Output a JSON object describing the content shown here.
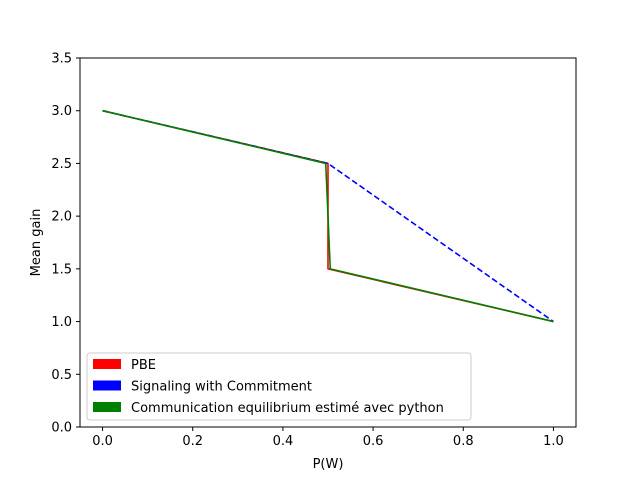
{
  "chart_data": {
    "type": "line",
    "title": "",
    "xlabel": "P(W)",
    "ylabel": "Mean gain",
    "xlim": [
      -0.05,
      1.05
    ],
    "ylim": [
      0.0,
      3.5
    ],
    "xticks": [
      0.0,
      0.2,
      0.4,
      0.6,
      0.8,
      1.0
    ],
    "xtick_labels": [
      "0.0",
      "0.2",
      "0.4",
      "0.6",
      "0.8",
      "1.0"
    ],
    "yticks": [
      0.0,
      0.5,
      1.0,
      1.5,
      2.0,
      2.5,
      3.0,
      3.5
    ],
    "ytick_labels": [
      "0.0",
      "0.5",
      "1.0",
      "1.5",
      "2.0",
      "2.5",
      "3.0",
      "3.5"
    ],
    "grid": false,
    "legend_position": "lower-left",
    "series": [
      {
        "name": "PBE",
        "color": "#ff0000",
        "linestyle": "solid",
        "x": [
          0.0,
          0.5,
          0.5,
          1.0
        ],
        "y": [
          3.0,
          2.5,
          1.5,
          1.0
        ]
      },
      {
        "name": "Signaling with Commitment",
        "color": "#0000ff",
        "linestyle": "dashed",
        "x": [
          0.0,
          0.5,
          1.0
        ],
        "y": [
          3.0,
          2.5,
          1.0
        ]
      },
      {
        "name": "Communication equilibrium estimé avec python",
        "color": "#008000",
        "linestyle": "solid",
        "x": [
          0.0,
          0.495,
          0.505,
          1.0
        ],
        "y": [
          3.0,
          2.5,
          1.5,
          1.0
        ]
      }
    ]
  }
}
